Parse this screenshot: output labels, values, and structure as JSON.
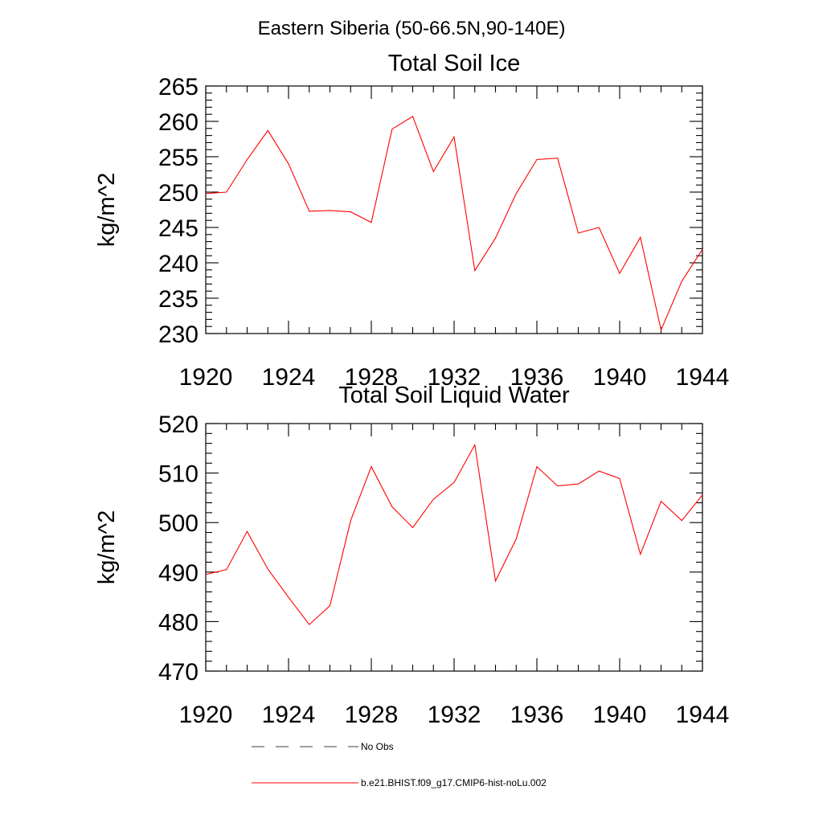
{
  "suptitle": "Eastern Siberia (50-66.5N,90-140E)",
  "colors": {
    "model": "#ff0000",
    "obs": "#000000"
  },
  "legend": {
    "obs_label": "No Obs",
    "model_label": "b.e21.BHIST.f09_g17.CMIP6-hist-noLu.002"
  },
  "chart_data": [
    {
      "type": "line",
      "title": "Total Soil Ice",
      "xlabel": "",
      "ylabel": "kg/m^2",
      "xlim": [
        1920,
        1944
      ],
      "ylim": [
        230,
        265
      ],
      "x_ticks": [
        1920,
        1924,
        1928,
        1932,
        1936,
        1940,
        1944
      ],
      "y_ticks": [
        230,
        235,
        240,
        245,
        250,
        255,
        260,
        265
      ],
      "grid": false,
      "series": [
        {
          "name": "b.e21.BHIST.f09_g17.CMIP6-hist-noLu.002",
          "x": [
            1920,
            1921,
            1922,
            1923,
            1924,
            1925,
            1926,
            1927,
            1928,
            1929,
            1930,
            1931,
            1932,
            1933,
            1934,
            1935,
            1936,
            1937,
            1938,
            1939,
            1940,
            1941,
            1942,
            1943,
            1944
          ],
          "values": [
            249.8,
            250.0,
            254.6,
            258.7,
            254.0,
            247.3,
            247.4,
            247.2,
            245.7,
            258.9,
            260.7,
            252.9,
            257.8,
            238.9,
            243.5,
            249.8,
            254.6,
            254.8,
            244.2,
            245.0,
            238.5,
            243.6,
            230.5,
            237.4,
            241.9
          ]
        }
      ]
    },
    {
      "type": "line",
      "title": "Total Soil Liquid Water",
      "xlabel": "",
      "ylabel": "kg/m^2",
      "xlim": [
        1920,
        1944
      ],
      "ylim": [
        470,
        520
      ],
      "x_ticks": [
        1920,
        1924,
        1928,
        1932,
        1936,
        1940,
        1944
      ],
      "y_ticks": [
        470,
        480,
        490,
        500,
        510,
        520
      ],
      "grid": false,
      "series": [
        {
          "name": "b.e21.BHIST.f09_g17.CMIP6-hist-noLu.002",
          "x": [
            1920,
            1921,
            1922,
            1923,
            1924,
            1925,
            1926,
            1927,
            1928,
            1929,
            1930,
            1931,
            1932,
            1933,
            1934,
            1935,
            1936,
            1937,
            1938,
            1939,
            1940,
            1941,
            1942,
            1943,
            1944
          ],
          "values": [
            489.5,
            490.5,
            498.2,
            490.6,
            484.9,
            479.4,
            483.2,
            500.4,
            511.3,
            503.2,
            499.0,
            504.7,
            508.1,
            515.7,
            488.2,
            496.7,
            511.3,
            507.4,
            507.8,
            510.4,
            508.9,
            493.6,
            504.3,
            500.4,
            505.6
          ]
        }
      ]
    }
  ]
}
